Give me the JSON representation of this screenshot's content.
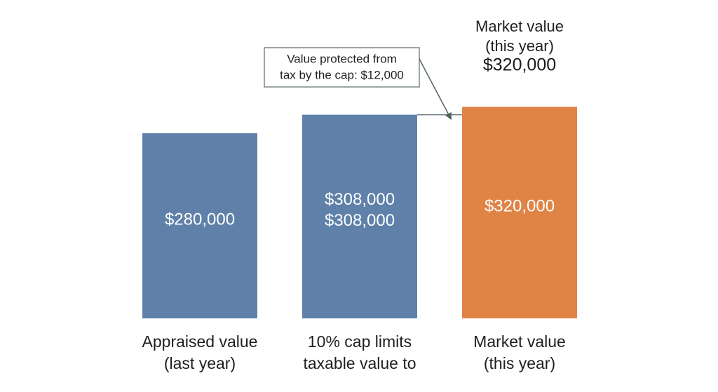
{
  "chart_data": {
    "type": "bar",
    "categories": [
      [
        "Appraised value",
        "(last year)"
      ],
      [
        "10% cap limits",
        "taxable value to"
      ],
      [
        "Market value",
        "(this year)"
      ]
    ],
    "values": [
      280000,
      308000,
      320000
    ],
    "bar_labels": [
      [
        "$280,000"
      ],
      [
        "$308,000",
        "$308,000"
      ],
      [
        "$320,000"
      ]
    ],
    "colors": [
      "#5f81a9",
      "#5f81a9",
      "#e08446"
    ],
    "top_label": {
      "bar_index": 2,
      "lines": [
        "Market value",
        "(this year)"
      ],
      "value": "$320,000"
    },
    "callout": {
      "lines": [
        "Value protected from",
        "tax by the cap: $12,000"
      ],
      "value": 12000,
      "from_bar": 1,
      "to_bar": 2
    },
    "axes_visible": false,
    "grid": false,
    "legend": "none"
  }
}
